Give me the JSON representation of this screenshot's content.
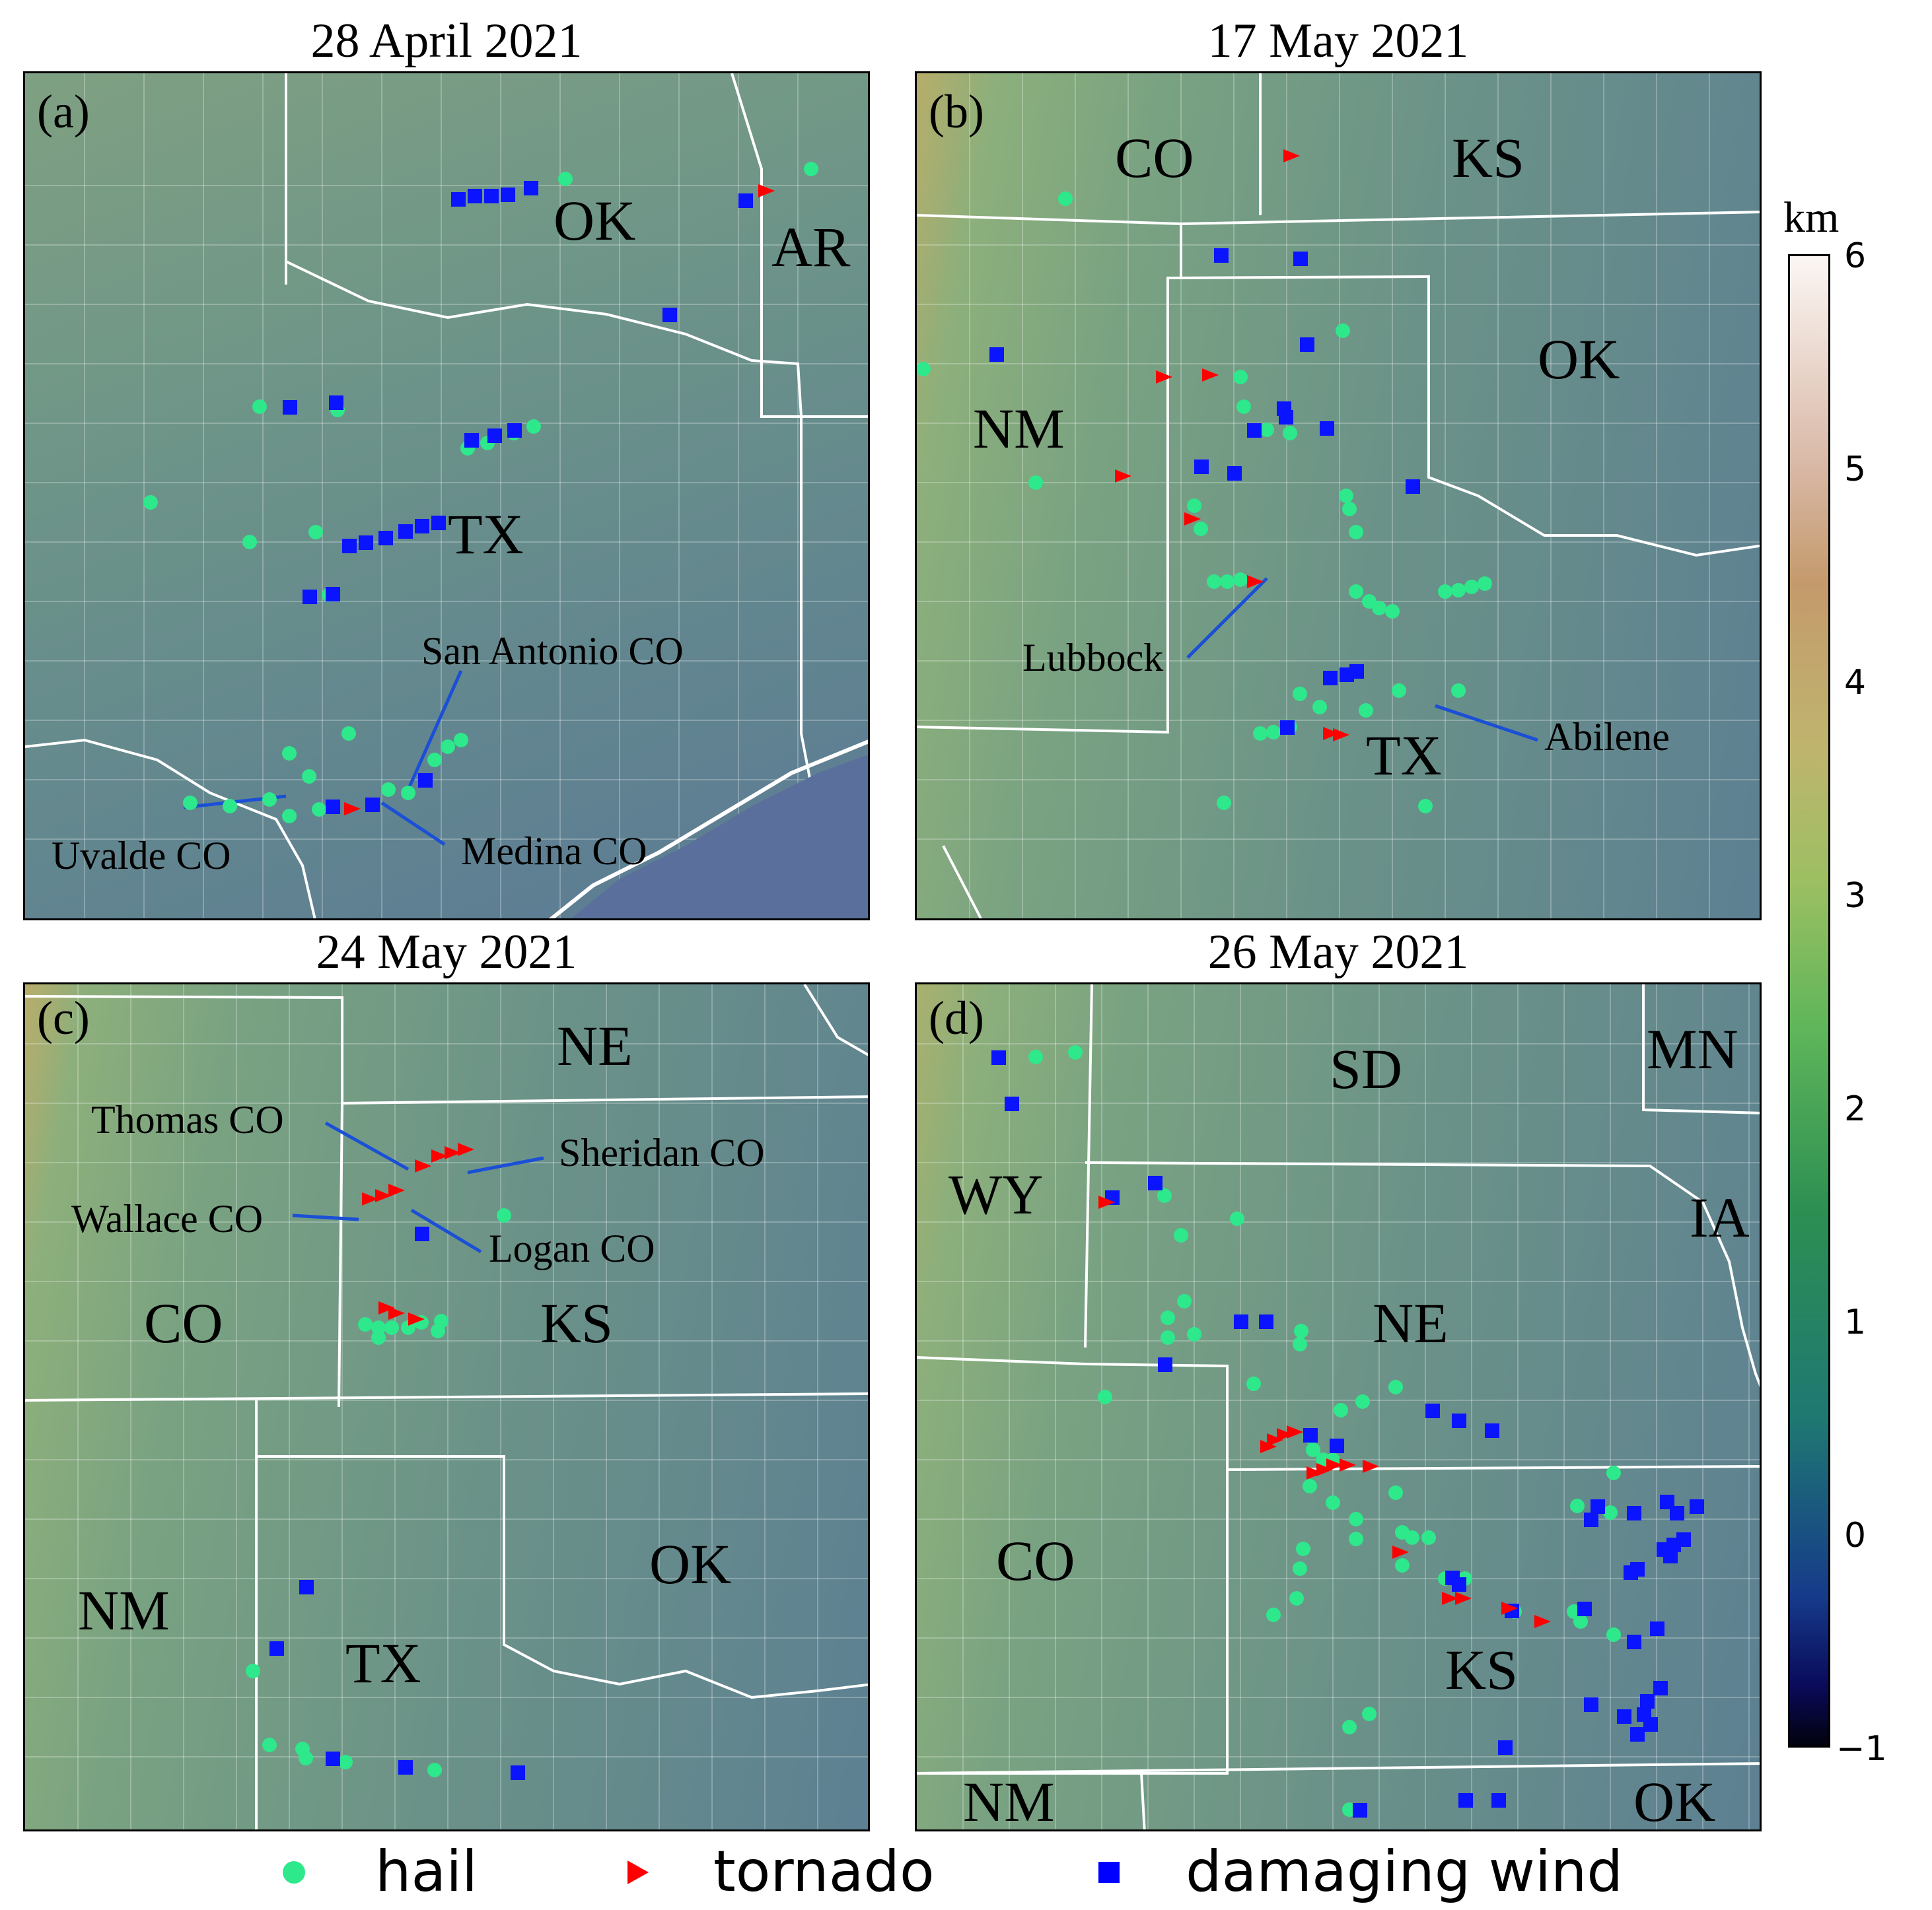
{
  "panels": [
    {
      "letter": "(a)",
      "title": "28 April 2021",
      "states": [
        "OK",
        "AR",
        "TX"
      ],
      "annotations": [
        "San Antonio CO",
        "Uvalde CO",
        "Medina CO"
      ]
    },
    {
      "letter": "(b)",
      "title": "17 May 2021",
      "states": [
        "CO",
        "KS",
        "OK",
        "NM",
        "TX"
      ],
      "annotations": [
        "Lubbock",
        "Abilene"
      ]
    },
    {
      "letter": "(c)",
      "title": "24 May 2021",
      "states": [
        "NE",
        "CO",
        "KS",
        "OK",
        "NM",
        "TX"
      ],
      "annotations": [
        "Thomas CO",
        "Sheridan CO",
        "Wallace CO",
        "Logan CO"
      ]
    },
    {
      "letter": "(d)",
      "title": "26 May 2021",
      "states": [
        "SD",
        "MN",
        "WY",
        "IA",
        "NE",
        "CO",
        "KS",
        "NM",
        "OK"
      ],
      "annotations": []
    }
  ],
  "colorbar": {
    "title": "km",
    "ticks": [
      "6",
      "5",
      "4",
      "3",
      "2",
      "1",
      "0",
      "−1"
    ],
    "range": [
      -1,
      6
    ]
  },
  "legend": {
    "items": [
      {
        "label": "hail",
        "marker": "circle",
        "color": "#2ee88c"
      },
      {
        "label": "tornado",
        "marker": "triangle-right",
        "color": "#ff0000"
      },
      {
        "label": "damaging wind",
        "marker": "square",
        "color": "#0000ff"
      }
    ]
  },
  "colors": {
    "hail": "#2ee88c",
    "tornado": "#ff0000",
    "wind": "#0a14ff",
    "boundary": "#ffffff",
    "annotation_line": "#1a4fd6"
  }
}
